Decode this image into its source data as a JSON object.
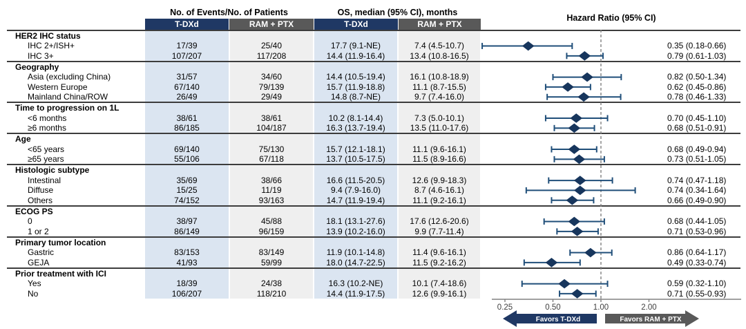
{
  "header": {
    "events_group": "No. of Events/No. of Patients",
    "os_group": "OS, median (95% CI), months",
    "hr_group": "Hazard Ratio (95% CI)",
    "tdxd": "T-DXd",
    "ram": "RAM + PTX"
  },
  "colors": {
    "navy_header": "#1f3864",
    "gray_header": "#595959",
    "band_blue": "#dbe5f1",
    "band_gray": "#efefef",
    "ci_line": "#1f4e79",
    "diamond": "#17365d",
    "axis": "#808080",
    "reference_line": "#7f7f7f",
    "divider": "#3c3c3c"
  },
  "chart_data": {
    "type": "scatter",
    "variant": "forest-plot",
    "x_scale": "log2",
    "xlabel": "Hazard Ratio (95% CI)",
    "x_ticks": [
      "0.25",
      "0.50",
      "1.00",
      "2.00"
    ],
    "x_tick_values": [
      0.25,
      0.5,
      1.0,
      2.0
    ],
    "x_range": [
      0.2,
      2.6
    ],
    "reference_line": 1.0,
    "favors_left": "Favors T-DXd",
    "favors_right": "Favors RAM + PTX",
    "sections": [
      {
        "label": "HER2 IHC status",
        "rows": [
          {
            "label": "IHC 2+/ISH+",
            "events_tdxd": "17/39",
            "events_ram": "25/40",
            "os_tdxd": "17.7 (9.1-NE)",
            "os_ram": "7.4 (4.5-10.7)",
            "hr": 0.35,
            "ci_low": 0.18,
            "ci_high": 0.66,
            "hr_text": "0.35 (0.18-0.66)"
          },
          {
            "label": "IHC 3+",
            "events_tdxd": "107/207",
            "events_ram": "117/208",
            "os_tdxd": "14.4 (11.9-16.4)",
            "os_ram": "13.4 (10.8-16.5)",
            "hr": 0.79,
            "ci_low": 0.61,
            "ci_high": 1.03,
            "hr_text": "0.79 (0.61-1.03)"
          }
        ]
      },
      {
        "label": "Geography",
        "rows": [
          {
            "label": "Asia (excluding China)",
            "events_tdxd": "31/57",
            "events_ram": "34/60",
            "os_tdxd": "14.4 (10.5-19.4)",
            "os_ram": "16.1 (10.8-18.9)",
            "hr": 0.82,
            "ci_low": 0.5,
            "ci_high": 1.34,
            "hr_text": "0.82 (0.50-1.34)"
          },
          {
            "label": "Western Europe",
            "events_tdxd": "67/140",
            "events_ram": "79/139",
            "os_tdxd": "15.7 (11.9-18.8)",
            "os_ram": "11.1 (8.7-15.5)",
            "hr": 0.62,
            "ci_low": 0.45,
            "ci_high": 0.86,
            "hr_text": "0.62 (0.45-0.86)"
          },
          {
            "label": "Mainland China/ROW",
            "events_tdxd": "26/49",
            "events_ram": "29/49",
            "os_tdxd": "14.8 (8.7-NE)",
            "os_ram": "9.7 (7.4-16.0)",
            "hr": 0.78,
            "ci_low": 0.46,
            "ci_high": 1.33,
            "hr_text": "0.78 (0.46-1.33)"
          }
        ]
      },
      {
        "label": "Time to progression on 1L",
        "rows": [
          {
            "label": "<6 months",
            "events_tdxd": "38/61",
            "events_ram": "38/61",
            "os_tdxd": "10.2 (8.1-14.4)",
            "os_ram": "7.3 (5.0-10.1)",
            "hr": 0.7,
            "ci_low": 0.45,
            "ci_high": 1.1,
            "hr_text": "0.70 (0.45-1.10)"
          },
          {
            "label": "≥6 months",
            "events_tdxd": "86/185",
            "events_ram": "104/187",
            "os_tdxd": "16.3 (13.7-19.4)",
            "os_ram": "13.5 (11.0-17.6)",
            "hr": 0.68,
            "ci_low": 0.51,
            "ci_high": 0.91,
            "hr_text": "0.68 (0.51-0.91)"
          }
        ]
      },
      {
        "label": "Age",
        "rows": [
          {
            "label": "<65 years",
            "events_tdxd": "69/140",
            "events_ram": "75/130",
            "os_tdxd": "15.7 (12.1-18.1)",
            "os_ram": "11.1 (9.6-16.1)",
            "hr": 0.68,
            "ci_low": 0.49,
            "ci_high": 0.94,
            "hr_text": "0.68 (0.49-0.94)"
          },
          {
            "label": "≥65 years",
            "events_tdxd": "55/106",
            "events_ram": "67/118",
            "os_tdxd": "13.7 (10.5-17.5)",
            "os_ram": "11.5 (8.9-16.6)",
            "hr": 0.73,
            "ci_low": 0.51,
            "ci_high": 1.05,
            "hr_text": "0.73 (0.51-1.05)"
          }
        ]
      },
      {
        "label": "Histologic subtype",
        "rows": [
          {
            "label": "Intestinal",
            "events_tdxd": "35/69",
            "events_ram": "38/66",
            "os_tdxd": "16.6 (11.5-20.5)",
            "os_ram": "12.6 (9.9-18.3)",
            "hr": 0.74,
            "ci_low": 0.47,
            "ci_high": 1.18,
            "hr_text": "0.74 (0.47-1.18)"
          },
          {
            "label": "Diffuse",
            "events_tdxd": "15/25",
            "events_ram": "11/19",
            "os_tdxd": "9.4 (7.9-16.0)",
            "os_ram": "8.7 (4.6-16.1)",
            "hr": 0.74,
            "ci_low": 0.34,
            "ci_high": 1.64,
            "hr_text": "0.74 (0.34-1.64)"
          },
          {
            "label": "Others",
            "events_tdxd": "74/152",
            "events_ram": "93/163",
            "os_tdxd": "14.7 (11.9-19.4)",
            "os_ram": "11.1 (9.2-16.1)",
            "hr": 0.66,
            "ci_low": 0.49,
            "ci_high": 0.9,
            "hr_text": "0.66 (0.49-0.90)"
          }
        ]
      },
      {
        "label": "ECOG PS",
        "rows": [
          {
            "label": "0",
            "events_tdxd": "38/97",
            "events_ram": "45/88",
            "os_tdxd": "18.1 (13.1-27.6)",
            "os_ram": "17.6 (12.6-20.6)",
            "hr": 0.68,
            "ci_low": 0.44,
            "ci_high": 1.05,
            "hr_text": "0.68 (0.44-1.05)"
          },
          {
            "label": "1 or 2",
            "events_tdxd": "86/149",
            "events_ram": "96/159",
            "os_tdxd": "13.9 (10.2-16.0)",
            "os_ram": "9.9 (7.7-11.4)",
            "hr": 0.71,
            "ci_low": 0.53,
            "ci_high": 0.96,
            "hr_text": "0.71 (0.53-0.96)"
          }
        ]
      },
      {
        "label": "Primary tumor location",
        "rows": [
          {
            "label": "Gastric",
            "events_tdxd": "83/153",
            "events_ram": "83/149",
            "os_tdxd": "11.9 (10.1-14.8)",
            "os_ram": "11.4 (9.6-16.1)",
            "hr": 0.86,
            "ci_low": 0.64,
            "ci_high": 1.17,
            "hr_text": "0.86 (0.64-1.17)"
          },
          {
            "label": "GEJA",
            "events_tdxd": "41/93",
            "events_ram": "59/99",
            "os_tdxd": "18.0 (14.7-22.5)",
            "os_ram": "11.5 (9.2-16.2)",
            "hr": 0.49,
            "ci_low": 0.33,
            "ci_high": 0.74,
            "hr_text": "0.49 (0.33-0.74)"
          }
        ]
      },
      {
        "label": "Prior treatment with ICI",
        "rows": [
          {
            "label": "Yes",
            "events_tdxd": "18/39",
            "events_ram": "24/38",
            "os_tdxd": "16.3 (10.2-NE)",
            "os_ram": "10.1 (7.4-18.6)",
            "hr": 0.59,
            "ci_low": 0.32,
            "ci_high": 1.1,
            "hr_text": "0.59 (0.32-1.10)"
          },
          {
            "label": "No",
            "events_tdxd": "106/207",
            "events_ram": "118/210",
            "os_tdxd": "14.4 (11.9-17.5)",
            "os_ram": "12.6 (9.9-16.1)",
            "hr": 0.71,
            "ci_low": 0.55,
            "ci_high": 0.93,
            "hr_text": "0.71 (0.55-0.93)"
          }
        ]
      }
    ]
  }
}
